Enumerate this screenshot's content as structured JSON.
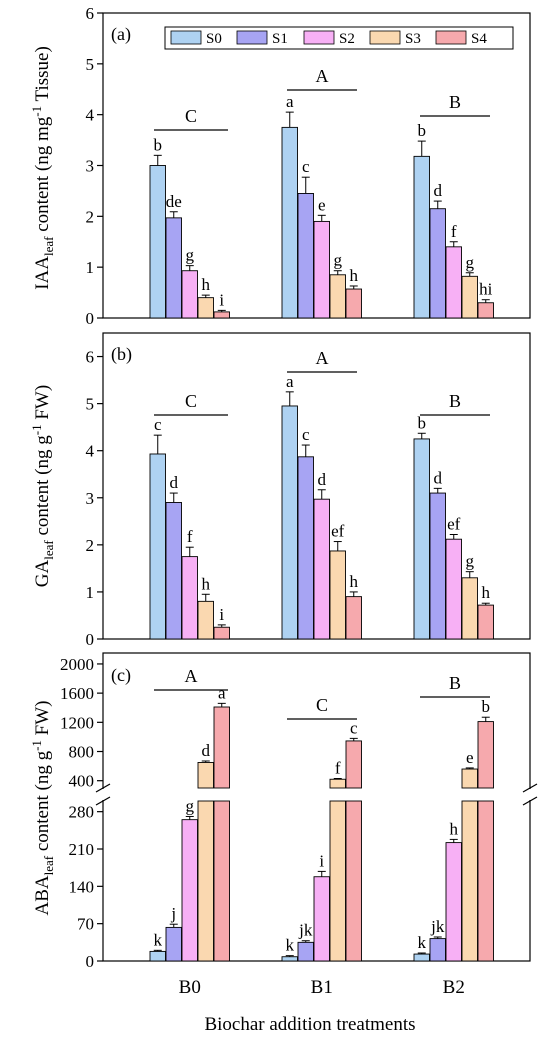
{
  "colors": {
    "S0": "#aed2f2",
    "S1": "#a7a4f3",
    "S2": "#f7b0f5",
    "S3": "#fad8b0",
    "S4": "#f6a9ad"
  },
  "legend": [
    "S0",
    "S1",
    "S2",
    "S3",
    "S4"
  ],
  "xlabel": "Biochar addition treatments",
  "chart_data": [
    {
      "type": "bar",
      "panel": "(a)",
      "ylabel_pre": "IAA",
      "ylabel_sub": "leaf",
      "ylabel_post": " content (ng mg",
      "ylabel_sup": "-1",
      "ylabel_end": " Tissue)",
      "ylim": [
        0,
        6
      ],
      "yticks": [
        0,
        1,
        2,
        3,
        4,
        5,
        6
      ],
      "categories": [
        "B0",
        "B1",
        "B2"
      ],
      "series": [
        {
          "name": "S0",
          "values": [
            3.0,
            3.75,
            3.18
          ],
          "errors": [
            0.2,
            0.3,
            0.3
          ],
          "letters": [
            "b",
            "a",
            "b"
          ]
        },
        {
          "name": "S1",
          "values": [
            1.97,
            2.45,
            2.15
          ],
          "errors": [
            0.12,
            0.32,
            0.15
          ],
          "letters": [
            "de",
            "c",
            "d"
          ]
        },
        {
          "name": "S2",
          "values": [
            0.93,
            1.9,
            1.4
          ],
          "errors": [
            0.1,
            0.12,
            0.1
          ],
          "letters": [
            "g",
            "e",
            "f"
          ]
        },
        {
          "name": "S3",
          "values": [
            0.4,
            0.85,
            0.82
          ],
          "errors": [
            0.05,
            0.08,
            0.07
          ],
          "letters": [
            "h",
            "g",
            "g"
          ]
        },
        {
          "name": "S4",
          "values": [
            0.12,
            0.57,
            0.3
          ],
          "errors": [
            0.03,
            0.06,
            0.06
          ],
          "letters": [
            "i",
            "h",
            "hi"
          ]
        }
      ],
      "group_letters": [
        "C",
        "A",
        "B"
      ]
    },
    {
      "type": "bar",
      "panel": "(b)",
      "ylabel_pre": "GA",
      "ylabel_sub": "leaf",
      "ylabel_post": " content (ng g",
      "ylabel_sup": "-1",
      "ylabel_end": " FW)",
      "ylim": [
        0,
        6.5
      ],
      "yticks": [
        0,
        1,
        2,
        3,
        4,
        5,
        6
      ],
      "categories": [
        "B0",
        "B1",
        "B2"
      ],
      "series": [
        {
          "name": "S0",
          "values": [
            3.93,
            4.95,
            4.25
          ],
          "errors": [
            0.4,
            0.3,
            0.12
          ],
          "letters": [
            "c",
            "a",
            "b"
          ]
        },
        {
          "name": "S1",
          "values": [
            2.9,
            3.87,
            3.1
          ],
          "errors": [
            0.2,
            0.25,
            0.1
          ],
          "letters": [
            "d",
            "c",
            "d"
          ]
        },
        {
          "name": "S2",
          "values": [
            1.75,
            2.97,
            2.12
          ],
          "errors": [
            0.2,
            0.2,
            0.1
          ],
          "letters": [
            "f",
            "d",
            "ef"
          ]
        },
        {
          "name": "S3",
          "values": [
            0.8,
            1.87,
            1.3
          ],
          "errors": [
            0.15,
            0.2,
            0.13
          ],
          "letters": [
            "h",
            "ef",
            "g"
          ]
        },
        {
          "name": "S4",
          "values": [
            0.25,
            0.9,
            0.72
          ],
          "errors": [
            0.05,
            0.1,
            0.04
          ],
          "letters": [
            "i",
            "h",
            "h"
          ]
        }
      ],
      "group_letters": [
        "C",
        "A",
        "B"
      ]
    },
    {
      "type": "bar",
      "panel": "(c)",
      "ylabel_pre": "ABA",
      "ylabel_sub": "leaf",
      "ylabel_post": " content (ng g",
      "ylabel_sup": "-1",
      "ylabel_end": " FW)",
      "broken_axis": true,
      "lower_ylim": [
        0,
        300
      ],
      "lower_yticks": [
        0,
        70,
        140,
        210,
        280
      ],
      "upper_ylim": [
        300,
        2150
      ],
      "upper_yticks": [
        400,
        800,
        1200,
        1600,
        2000
      ],
      "categories": [
        "B0",
        "B1",
        "B2"
      ],
      "series": [
        {
          "name": "S0",
          "values": [
            18,
            8,
            13
          ],
          "errors": [
            2,
            2,
            2
          ],
          "letters": [
            "k",
            "k",
            "k"
          ]
        },
        {
          "name": "S1",
          "values": [
            63,
            35,
            42
          ],
          "errors": [
            6,
            3,
            3
          ],
          "letters": [
            "j",
            "jk",
            "jk"
          ]
        },
        {
          "name": "S2",
          "values": [
            265,
            158,
            222
          ],
          "errors": [
            6,
            10,
            6
          ],
          "letters": [
            "g",
            "i",
            "h"
          ]
        },
        {
          "name": "S3",
          "values": [
            650,
            420,
            560
          ],
          "errors": [
            20,
            10,
            15
          ],
          "letters": [
            "d",
            "f",
            "e"
          ]
        },
        {
          "name": "S4",
          "values": [
            1410,
            945,
            1210
          ],
          "errors": [
            50,
            35,
            60
          ],
          "letters": [
            "a",
            "c",
            "b"
          ]
        }
      ],
      "group_letters": [
        "A",
        "C",
        "B"
      ]
    }
  ]
}
